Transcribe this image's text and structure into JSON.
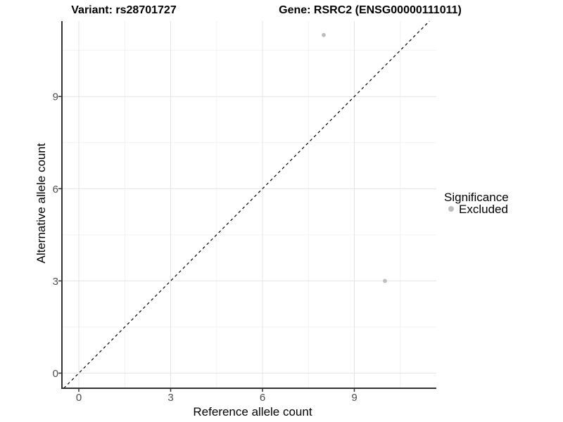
{
  "titles": {
    "variant": "Variant: rs28701727",
    "gene": "Gene: RSRC2 (ENSG00000111011)"
  },
  "axes": {
    "x": {
      "label": "Reference allele count"
    },
    "y": {
      "label": "Alternative allele count"
    }
  },
  "legend": {
    "title": "Significance",
    "items": [
      {
        "label": "Excluded",
        "color": "#bebebe"
      }
    ]
  },
  "colors": {
    "point": "#bebebe",
    "grid_major": "#e4e4e4",
    "grid_minor": "#f2f2f2",
    "axis_line": "#333333",
    "tick_mark": "#333333",
    "tick_label": "#4d4d4d",
    "identity_line": "#000000",
    "panel_background": "#ffffff"
  },
  "chart_data": {
    "type": "scatter",
    "title": "Variant: rs28701727 | Gene: RSRC2 (ENSG00000111011)",
    "xlabel": "Reference allele count",
    "ylabel": "Alternative allele count",
    "xlim": [
      -0.55,
      11.68
    ],
    "ylim": [
      -0.49,
      11.45
    ],
    "x_ticks": [
      0,
      3,
      6,
      9
    ],
    "y_ticks": [
      0,
      3,
      6,
      9
    ],
    "x_minor_ticks": [
      1.5,
      4.5,
      7.5,
      10.5
    ],
    "y_minor_ticks": [
      1.5,
      4.5,
      7.5,
      10.5
    ],
    "grid": "major+minor",
    "legend_position": "right",
    "series": [
      {
        "name": "Excluded",
        "color": "#bebebe",
        "points": [
          [
            8,
            11
          ],
          [
            10,
            3
          ]
        ]
      }
    ],
    "reference_line": {
      "type": "identity y=x",
      "style": "dashed",
      "color": "#000000"
    }
  }
}
